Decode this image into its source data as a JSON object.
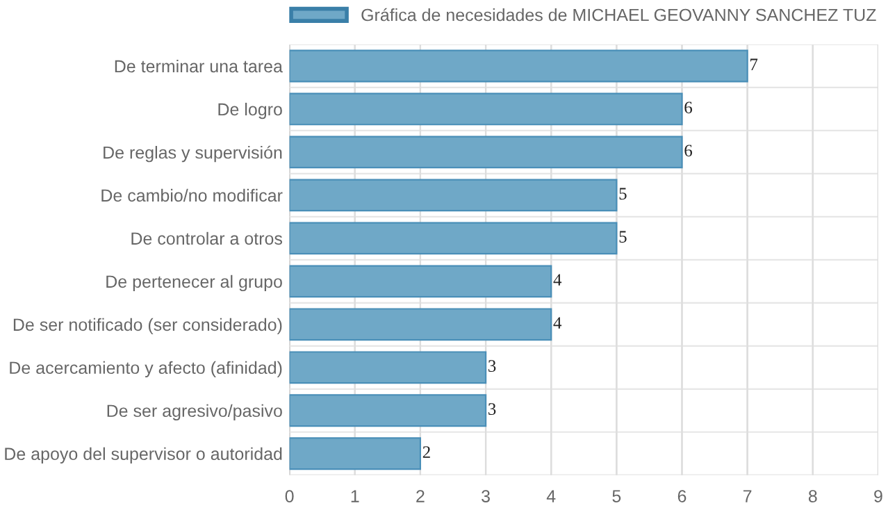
{
  "chart_data": {
    "type": "bar",
    "orientation": "horizontal",
    "categories": [
      "De terminar una tarea",
      "De logro",
      "De reglas y supervisión",
      "De cambio/no modificar",
      "De controlar a otros",
      "De pertenecer al grupo",
      "De ser notificado (ser considerado)",
      "De acercamiento y afecto (afinidad)",
      "De ser agresivo/pasivo",
      "De apoyo del supervisor o autoridad"
    ],
    "series": [
      {
        "name": "Gráfica de necesidades de MICHAEL GEOVANNY SANCHEZ TUZ",
        "color": "#6fa8c7",
        "values": [
          7,
          6,
          6,
          5,
          5,
          4,
          4,
          3,
          3,
          2
        ]
      }
    ],
    "xlim": [
      0,
      9
    ],
    "xticks": [
      0,
      1,
      2,
      3,
      4,
      5,
      6,
      7,
      8,
      9
    ],
    "grid": true,
    "legend": "top",
    "data_labels": true
  }
}
